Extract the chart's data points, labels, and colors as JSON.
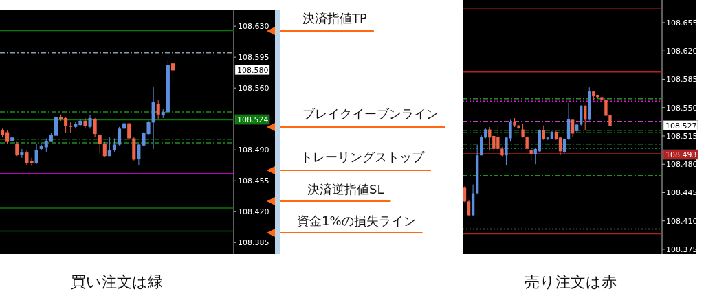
{
  "chart_data": [
    {
      "type": "candlestick",
      "tick_labels": "y",
      "categories": [
        null,
        null,
        null,
        null,
        null,
        null,
        null,
        null,
        null,
        null,
        null,
        null,
        null,
        null,
        null,
        null,
        null,
        null,
        null,
        null,
        null,
        null,
        null,
        null,
        null,
        null,
        null,
        null,
        null,
        null,
        null,
        null,
        null,
        null,
        null,
        null,
        null,
        null,
        null,
        null,
        null,
        null,
        null,
        null,
        null,
        null,
        null,
        null
      ],
      "ohlc": [
        [
          108.512,
          108.514,
          108.504,
          108.507
        ],
        [
          108.51,
          108.512,
          108.497,
          108.499
        ],
        [
          108.5,
          108.505,
          108.499,
          108.504
        ],
        [
          108.497,
          108.499,
          108.483,
          108.484
        ],
        [
          108.484,
          108.491,
          108.481,
          108.487
        ],
        [
          108.487,
          108.489,
          108.473,
          108.475
        ],
        [
          108.477,
          108.481,
          108.472,
          108.475
        ],
        [
          108.475,
          108.497,
          108.474,
          108.49
        ],
        [
          108.491,
          108.496,
          108.49,
          108.494
        ],
        [
          108.493,
          108.503,
          108.488,
          108.5
        ],
        [
          108.499,
          108.509,
          108.499,
          108.507
        ],
        [
          108.506,
          108.53,
          108.505,
          108.527
        ],
        [
          108.527,
          108.53,
          108.523,
          108.525
        ],
        [
          108.526,
          108.527,
          108.509,
          108.517
        ],
        [
          108.517,
          108.522,
          108.509,
          108.516
        ],
        [
          108.516,
          108.522,
          108.514,
          108.519
        ],
        [
          108.518,
          108.525,
          108.517,
          108.523
        ],
        [
          108.523,
          108.526,
          108.514,
          108.517
        ],
        [
          108.516,
          108.53,
          108.514,
          108.526
        ],
        [
          108.525,
          108.526,
          108.504,
          108.508
        ],
        [
          108.507,
          108.508,
          108.486,
          108.497
        ],
        [
          108.497,
          108.499,
          108.482,
          108.483
        ],
        [
          108.483,
          108.504,
          108.483,
          108.49
        ],
        [
          108.49,
          108.503,
          108.488,
          108.496
        ],
        [
          108.496,
          108.516,
          108.495,
          108.514
        ],
        [
          108.514,
          108.522,
          108.514,
          108.52
        ],
        [
          108.52,
          108.521,
          108.501,
          108.503
        ],
        [
          108.503,
          108.504,
          108.478,
          108.479
        ],
        [
          108.48,
          108.497,
          108.473,
          108.496
        ],
        [
          108.495,
          108.51,
          108.494,
          108.509
        ],
        [
          108.508,
          108.523,
          108.507,
          108.522
        ],
        [
          108.521,
          108.561,
          108.491,
          108.544
        ],
        [
          108.542,
          108.546,
          108.525,
          108.53
        ],
        [
          108.529,
          108.536,
          108.526,
          108.533
        ],
        [
          108.533,
          108.592,
          108.531,
          108.586
        ],
        [
          108.588,
          108.588,
          108.565,
          108.58
        ],
        null,
        null,
        null,
        null,
        null,
        null,
        null,
        null,
        null,
        null,
        null,
        null
      ],
      "colors": [
        "#f06448",
        "#f06448",
        "#5c8fe0",
        "#f06448",
        "#5c8fe0",
        "#f06448",
        "#f06448",
        "#5c8fe0",
        "#5c8fe0",
        "#5c8fe0",
        "#5c8fe0",
        "#5c8fe0",
        "#f06448",
        "#f06448",
        "#f06448",
        "#5c8fe0",
        "#5c8fe0",
        "#f06448",
        "#5c8fe0",
        "#f06448",
        "#f06448",
        "#f06448",
        "#5c8fe0",
        "#5c8fe0",
        "#5c8fe0",
        "#5c8fe0",
        "#f06448",
        "#f06448",
        "#5c8fe0",
        "#5c8fe0",
        "#5c8fe0",
        "#5c8fe0",
        "#f06448",
        "#5c8fe0",
        "#5c8fe0",
        "#f06448",
        null,
        null,
        null,
        null,
        null,
        null,
        null,
        null,
        null,
        null,
        null,
        null
      ],
      "ylim": [
        108.372,
        108.648
      ],
      "yticks": [
        {
          "value": 108.63,
          "label": "108.630"
        },
        108.595,
        {
          "value": 108.56,
          "label": "108.560"
        },
        {
          "value": 108.49,
          "label": "108.490"
        },
        108.455,
        {
          "value": 108.42,
          "label": "108.420"
        },
        108.385
      ],
      "ref_lines": [
        {
          "axis": "y",
          "value": 108.625,
          "color": "#0a7a0a",
          "line_style": "solid"
        },
        {
          "axis": "y",
          "value": 108.6,
          "color": "#8899aa",
          "line_style": "dashed"
        },
        {
          "axis": "y",
          "value": 108.533,
          "color": "#1f8f1f",
          "line_style": "dashed"
        },
        {
          "axis": "y",
          "value": 108.524,
          "color": "#0a7a0a",
          "line_style": "solid"
        },
        {
          "axis": "y",
          "value": 108.502,
          "color": "#1f8f1f",
          "line_style": "dashed"
        },
        {
          "axis": "y",
          "value": 108.498,
          "color": "#1f8f1f",
          "line_style": "dashed"
        },
        {
          "axis": "y",
          "value": 108.463,
          "color": "#ff00ff",
          "line_style": "solid"
        },
        {
          "axis": "y",
          "value": 108.424,
          "color": "#0a7a0a",
          "line_style": "solid"
        },
        {
          "axis": "y",
          "value": 108.398,
          "color": "#0a7a0a",
          "line_style": "solid"
        }
      ],
      "annotations": [
        "108.580",
        "108.524",
        "決済指値TP",
        "ブレイクイーブンライン",
        "トレーリングストップ",
        "決済逆指値SL",
        "資金1%の損失ライン",
        "買い注文は緑"
      ]
    },
    {
      "type": "candlestick",
      "tick_labels": "y",
      "categories": [
        null,
        null,
        null,
        null,
        null,
        null,
        null,
        null,
        null,
        null,
        null,
        null,
        null,
        null,
        null,
        null,
        null,
        null,
        null,
        null,
        null,
        null,
        null,
        null,
        null,
        null,
        null,
        null,
        null,
        null,
        null,
        null,
        null,
        null,
        null,
        null,
        null,
        null,
        null,
        null,
        null,
        null,
        null,
        null,
        null,
        null,
        null,
        null
      ],
      "ohlc": [
        [
          108.451,
          108.453,
          108.433,
          108.434
        ],
        [
          108.434,
          108.436,
          108.416,
          108.417
        ],
        [
          108.417,
          108.455,
          108.416,
          108.444
        ],
        [
          108.444,
          108.504,
          108.444,
          108.491
        ],
        [
          108.491,
          108.516,
          108.491,
          108.514
        ],
        [
          108.513,
          108.525,
          108.512,
          108.523
        ],
        [
          108.523,
          108.526,
          108.498,
          108.513
        ],
        [
          108.515,
          108.516,
          108.496,
          108.499
        ],
        [
          108.514,
          108.527,
          108.496,
          108.499
        ],
        [
          108.499,
          108.501,
          108.49,
          108.491
        ],
        [
          108.491,
          108.513,
          108.479,
          108.513
        ],
        [
          108.512,
          108.535,
          108.508,
          108.532
        ],
        [
          108.532,
          108.537,
          108.526,
          108.528
        ],
        [
          108.528,
          108.528,
          108.524,
          108.525
        ],
        [
          108.523,
          108.53,
          108.513,
          108.514
        ],
        [
          108.514,
          108.515,
          108.496,
          108.499
        ],
        [
          108.498,
          108.499,
          108.485,
          108.493
        ],
        [
          108.492,
          108.5,
          108.48,
          108.499
        ],
        [
          108.496,
          108.523,
          108.495,
          108.522
        ],
        [
          108.522,
          108.528,
          108.51,
          108.511
        ],
        [
          108.511,
          108.514,
          108.51,
          108.513
        ],
        [
          108.511,
          108.521,
          108.511,
          108.52
        ],
        [
          108.52,
          108.521,
          108.51,
          108.511
        ],
        [
          108.513,
          108.514,
          108.491,
          108.496
        ],
        [
          108.495,
          108.512,
          108.494,
          108.511
        ],
        [
          108.511,
          108.556,
          108.51,
          108.536
        ],
        [
          108.535,
          108.536,
          108.514,
          108.518
        ],
        [
          108.521,
          108.53,
          108.519,
          108.529
        ],
        [
          108.529,
          108.553,
          108.528,
          108.552
        ],
        [
          108.552,
          108.553,
          108.522,
          108.535
        ],
        [
          108.535,
          108.575,
          108.534,
          108.57
        ],
        [
          108.57,
          108.571,
          108.559,
          108.564
        ],
        [
          108.565,
          108.566,
          108.562,
          108.563
        ],
        [
          108.563,
          108.564,
          108.559,
          108.56
        ],
        [
          108.56,
          108.562,
          108.539,
          108.54
        ],
        [
          108.541,
          108.542,
          108.526,
          108.527
        ],
        null,
        null,
        null,
        null,
        null,
        null,
        null,
        null,
        null,
        null,
        null,
        null
      ],
      "colors": [
        "#f06448",
        "#f06448",
        "#5c8fe0",
        "#5c8fe0",
        "#5c8fe0",
        "#5c8fe0",
        "#f06448",
        "#f06448",
        "#f06448",
        "#f06448",
        "#5c8fe0",
        "#5c8fe0",
        "#f06448",
        "#f06448",
        "#f06448",
        "#f06448",
        "#f06448",
        "#5c8fe0",
        "#5c8fe0",
        "#f06448",
        "#5c8fe0",
        "#5c8fe0",
        "#f06448",
        "#f06448",
        "#5c8fe0",
        "#5c8fe0",
        "#f06448",
        "#5c8fe0",
        "#5c8fe0",
        "#f06448",
        "#5c8fe0",
        "#f06448",
        "#f06448",
        "#f06448",
        "#f06448",
        "#f06448",
        null,
        null,
        null,
        null,
        null,
        null,
        null,
        null,
        null,
        null,
        null,
        null
      ],
      "ylim": [
        108.369,
        108.683
      ],
      "yticks": [
        108.655,
        {
          "value": 108.62,
          "label": "108.620"
        },
        108.585,
        {
          "value": 108.55,
          "label": "108.550"
        },
        108.515,
        {
          "value": 108.48,
          "label": "108.480"
        },
        108.445,
        {
          "value": 108.41,
          "label": "108.410"
        },
        108.375
      ],
      "ref_lines": [
        {
          "axis": "y",
          "value": 108.673,
          "color": "#b22222",
          "line_style": "solid"
        },
        {
          "axis": "y",
          "value": 108.594,
          "color": "#b22222",
          "line_style": "solid"
        },
        {
          "axis": "y",
          "value": 108.561,
          "color": "#1f8f1f",
          "line_style": "dashed"
        },
        {
          "axis": "y",
          "value": 108.558,
          "color": "#ff00ff",
          "line_style": "dotted"
        },
        {
          "axis": "y",
          "value": 108.533,
          "color": "#c040c0",
          "line_style": "dashed"
        },
        {
          "axis": "y",
          "value": 108.522,
          "color": "#1f8f1f",
          "line_style": "dashed"
        },
        {
          "axis": "y",
          "value": 108.519,
          "color": "#1f8f1f",
          "line_style": "dashed"
        },
        {
          "axis": "y",
          "value": 108.505,
          "color": "#1f8f1f",
          "line_style": "dashed"
        },
        {
          "axis": "y",
          "value": 108.5,
          "color": "#22cccc",
          "line_style": "dotted"
        },
        {
          "axis": "y",
          "value": 108.493,
          "color": "#b22222",
          "line_style": "solid"
        },
        {
          "axis": "y",
          "value": 108.466,
          "color": "#1f8f1f",
          "line_style": "dashed"
        },
        {
          "axis": "y",
          "value": 108.4,
          "color": "#8899aa",
          "line_style": "dotted"
        },
        {
          "axis": "y",
          "value": 108.394,
          "color": "#b22222",
          "line_style": "solid"
        }
      ],
      "annotations": [
        "108.527",
        "108.493",
        "売り注文は赤"
      ]
    }
  ]
}
